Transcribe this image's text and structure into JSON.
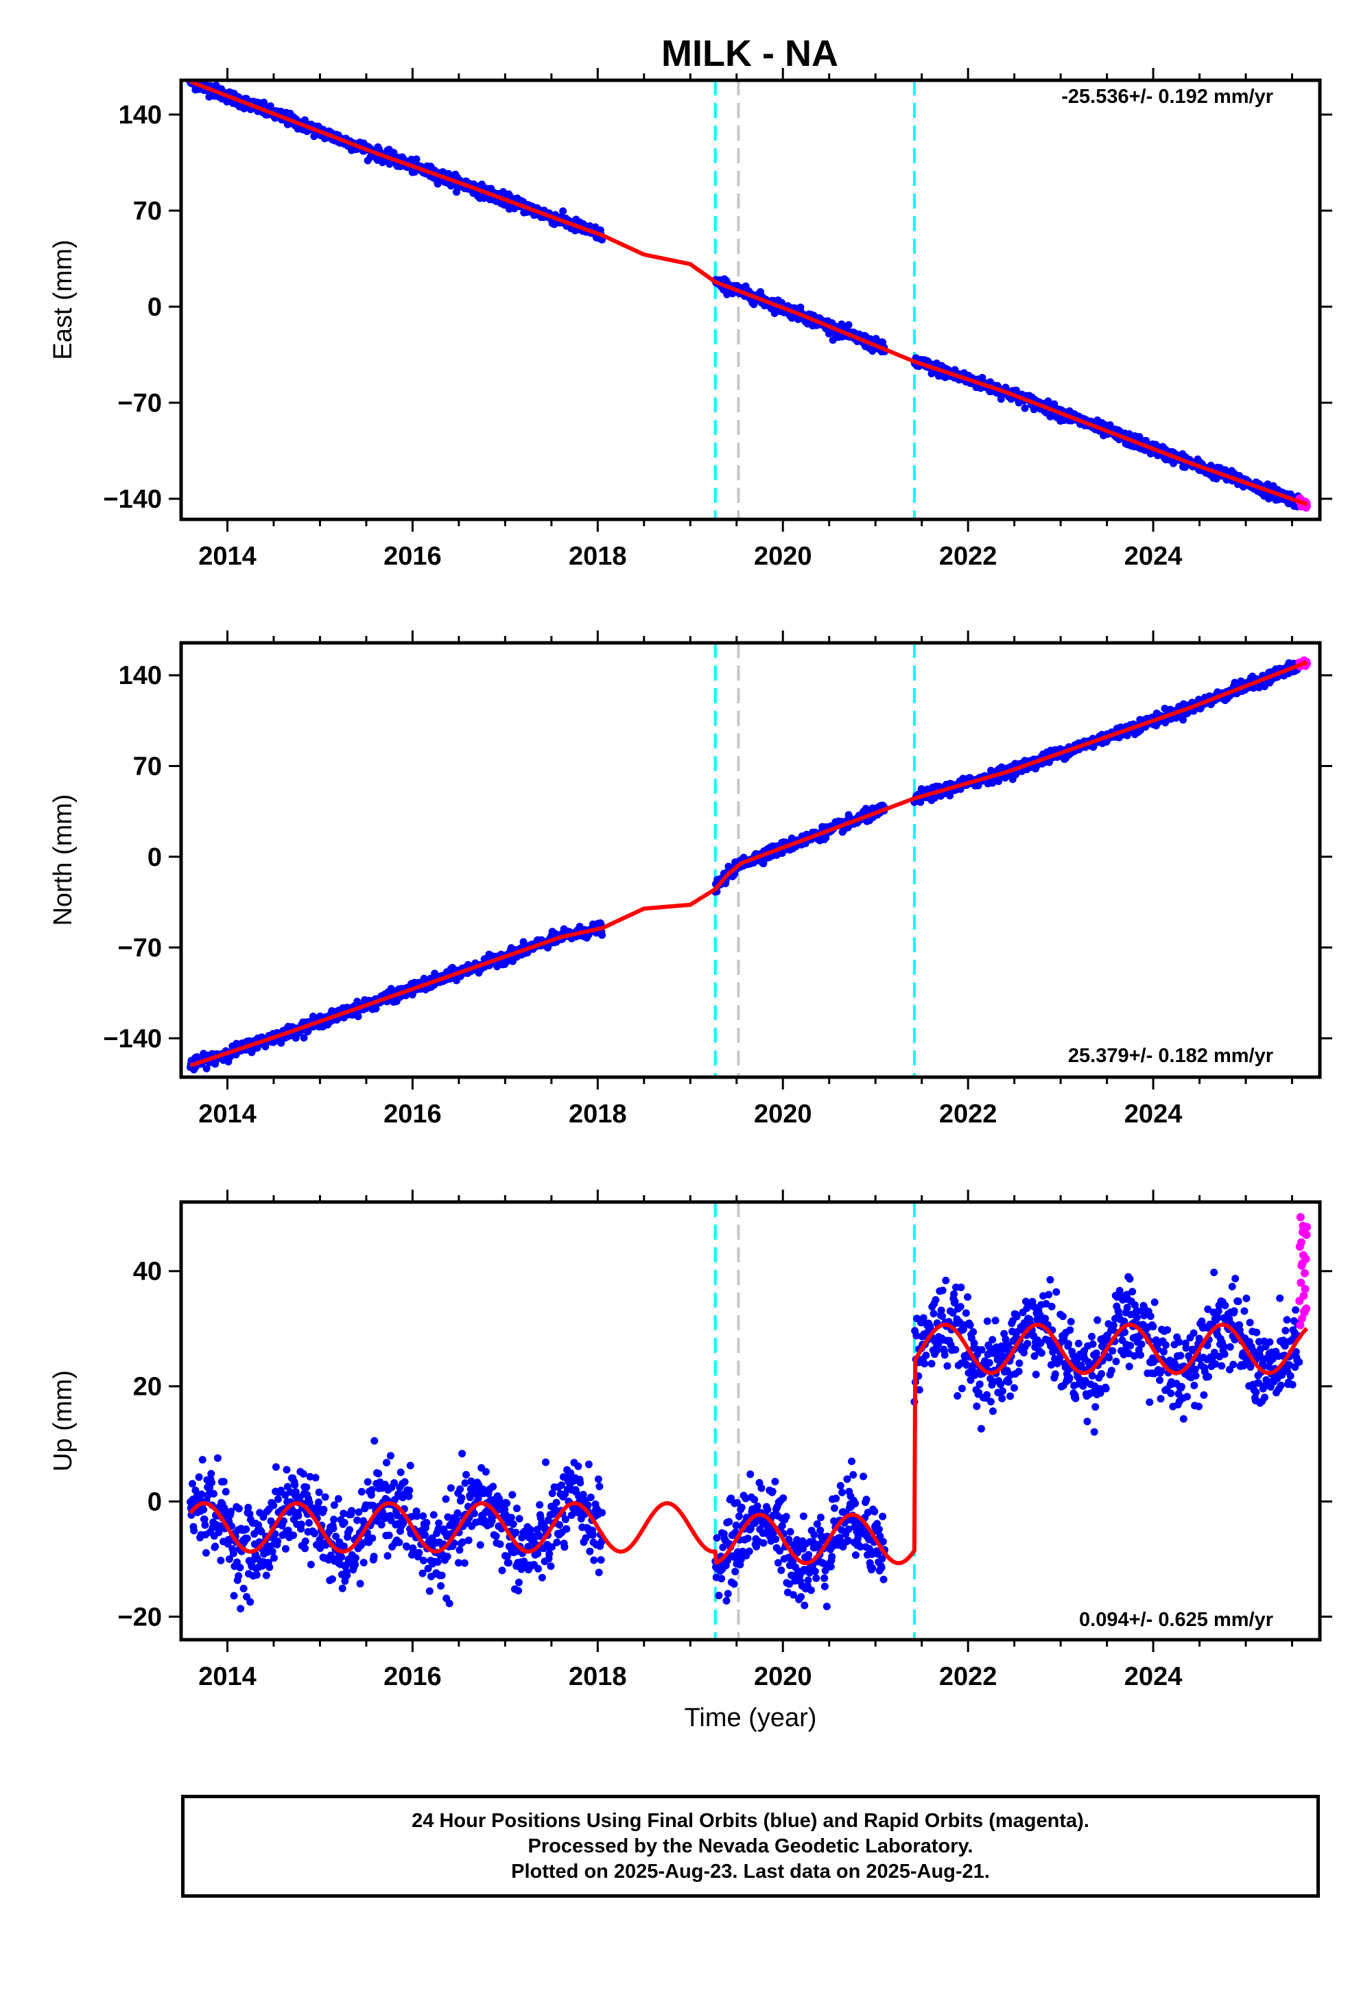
{
  "chart_title": "MILK - NA",
  "chart_data": [
    {
      "type": "scatter",
      "component": "East",
      "ylabel": "East (mm)",
      "xlabel": "",
      "xlim": [
        2013.5,
        2025.8
      ],
      "ylim": [
        -155,
        165
      ],
      "yticks": [
        -140,
        -70,
        0,
        70,
        140
      ],
      "xticks": [
        2014,
        2016,
        2018,
        2020,
        2022,
        2024
      ],
      "rate_label": "-25.536+/- 0.192 mm/yr",
      "series": [
        {
          "role": "final_orbits",
          "color": "#0000ff",
          "segments": [
            [
              2013.6,
              2018.05
            ],
            [
              2019.27,
              2021.1
            ],
            [
              2021.42,
              2025.58
            ]
          ],
          "trend_start": 164,
          "trend_rate": -25.536
        },
        {
          "role": "rapid_orbits",
          "color": "#ff00ff",
          "x_range": [
            2025.58,
            2025.66
          ]
        },
        {
          "role": "model_fit",
          "color": "#ff0000",
          "points": [
            [
              2013.6,
              164
            ],
            [
              2014.6,
              138
            ],
            [
              2015.6,
              112
            ],
            [
              2016.6,
              88
            ],
            [
              2017.6,
              63
            ],
            [
              2018.05,
              52
            ],
            [
              2018.5,
              38
            ],
            [
              2019.0,
              31
            ],
            [
              2019.27,
              18
            ],
            [
              2020.2,
              -6
            ],
            [
              2021.42,
              -40
            ],
            [
              2022.4,
              -62
            ],
            [
              2023.4,
              -88
            ],
            [
              2024.4,
              -114
            ],
            [
              2025.66,
              -144
            ]
          ]
        }
      ],
      "vlines": [
        {
          "x": 2019.27,
          "color": "#00ffff",
          "style": "dashed"
        },
        {
          "x": 2019.52,
          "color": "#c8c8c8",
          "style": "dashed"
        },
        {
          "x": 2021.42,
          "color": "#00ffff",
          "style": "dashed"
        }
      ]
    },
    {
      "type": "scatter",
      "component": "North",
      "ylabel": "North (mm)",
      "xlabel": "",
      "xlim": [
        2013.5,
        2025.8
      ],
      "ylim": [
        -170,
        165
      ],
      "yticks": [
        -140,
        -70,
        0,
        70,
        140
      ],
      "xticks": [
        2014,
        2016,
        2018,
        2020,
        2022,
        2024
      ],
      "rate_label": "25.379+/- 0.182 mm/yr",
      "series": [
        {
          "role": "final_orbits",
          "color": "#0000ff",
          "segments": [
            [
              2013.6,
              2018.05
            ],
            [
              2019.27,
              2021.1
            ],
            [
              2021.42,
              2025.58
            ]
          ],
          "trend_start": -161,
          "trend_rate": 25.379
        },
        {
          "role": "rapid_orbits",
          "color": "#ff00ff",
          "x_range": [
            2025.58,
            2025.66
          ]
        },
        {
          "role": "model_fit",
          "color": "#ff0000",
          "points": [
            [
              2013.6,
              -161
            ],
            [
              2014.6,
              -137
            ],
            [
              2015.6,
              -112
            ],
            [
              2016.6,
              -87
            ],
            [
              2017.6,
              -62
            ],
            [
              2018.05,
              -55
            ],
            [
              2018.5,
              -40
            ],
            [
              2019.0,
              -37
            ],
            [
              2019.27,
              -25
            ],
            [
              2019.4,
              -14
            ],
            [
              2019.55,
              -5
            ],
            [
              2020.3,
              15
            ],
            [
              2021.42,
              45
            ],
            [
              2022.4,
              65
            ],
            [
              2023.4,
              90
            ],
            [
              2024.4,
              115
            ],
            [
              2025.66,
              150
            ]
          ]
        }
      ],
      "vlines": [
        {
          "x": 2019.27,
          "color": "#00ffff",
          "style": "dashed"
        },
        {
          "x": 2019.52,
          "color": "#c8c8c8",
          "style": "dashed"
        },
        {
          "x": 2021.42,
          "color": "#00ffff",
          "style": "dashed"
        }
      ]
    },
    {
      "type": "scatter",
      "component": "Up",
      "ylabel": "Up (mm)",
      "xlabel": "Time (year)",
      "xlim": [
        2013.5,
        2025.8
      ],
      "ylim": [
        -24,
        52
      ],
      "yticks": [
        -20,
        0,
        20,
        40
      ],
      "xticks": [
        2014,
        2016,
        2018,
        2020,
        2022,
        2024
      ],
      "rate_label": "0.094+/- 0.625 mm/yr",
      "series": [
        {
          "role": "final_orbits",
          "color": "#0000ff",
          "segments": [
            [
              2013.6,
              2018.05
            ],
            [
              2019.27,
              2021.1
            ],
            [
              2021.42,
              2025.58
            ]
          ],
          "offsets": [
            -4.5,
            -6.5,
            26.5
          ],
          "seasonal_amplitude": 4.2,
          "noise": 4.5
        },
        {
          "role": "rapid_orbits",
          "color": "#ff00ff",
          "x_range": [
            2025.58,
            2025.66
          ],
          "y_range": [
            30,
            50
          ]
        },
        {
          "role": "model_fit",
          "color": "#ff0000",
          "offsets": [
            -4.5,
            -6.5,
            26.5
          ],
          "seasonal_amplitude": 4.2,
          "breaks": [
            2019.27,
            2021.42
          ]
        }
      ],
      "vlines": [
        {
          "x": 2019.27,
          "color": "#00ffff",
          "style": "dashed"
        },
        {
          "x": 2019.52,
          "color": "#c8c8c8",
          "style": "dashed"
        },
        {
          "x": 2021.42,
          "color": "#00ffff",
          "style": "dashed"
        }
      ]
    }
  ],
  "footer": {
    "line1": "24 Hour Positions Using Final Orbits (blue) and Rapid Orbits (magenta).",
    "line2": "Processed by the Nevada Geodetic Laboratory.",
    "line3": "Plotted on 2025-Aug-23. Last data on 2025-Aug-21."
  }
}
